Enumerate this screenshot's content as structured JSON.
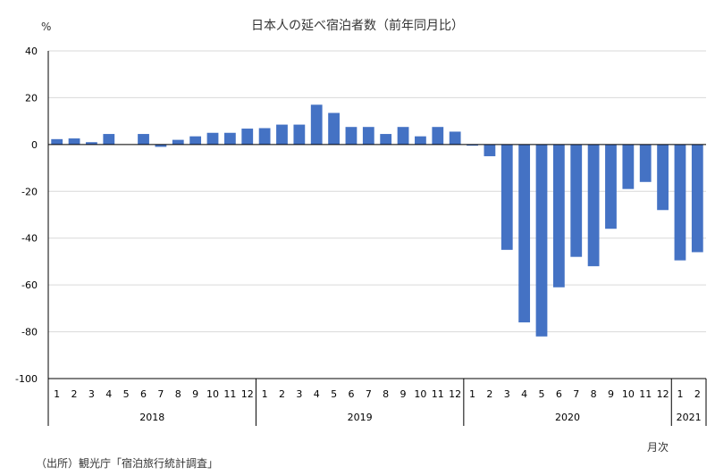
{
  "chart_data": {
    "type": "bar",
    "title": "日本人の延べ宿泊者数（前年同月比）",
    "ylabel": "%",
    "xlabel": "月次",
    "source": "（出所）観光庁「宿泊旅行統計調査」",
    "ylim": [
      -100,
      40
    ],
    "yticks": [
      40,
      20,
      0,
      -20,
      -40,
      -60,
      -80,
      -100
    ],
    "grid": true,
    "bar_color": "#4472c4",
    "groups": [
      {
        "year": "2018",
        "months": [
          "1",
          "2",
          "3",
          "4",
          "5",
          "6",
          "7",
          "8",
          "9",
          "10",
          "11",
          "12"
        ]
      },
      {
        "year": "2019",
        "months": [
          "1",
          "2",
          "3",
          "4",
          "5",
          "6",
          "7",
          "8",
          "9",
          "10",
          "11",
          "12"
        ]
      },
      {
        "year": "2020",
        "months": [
          "1",
          "2",
          "3",
          "4",
          "5",
          "6",
          "7",
          "8",
          "9",
          "10",
          "11",
          "12"
        ]
      },
      {
        "year": "2021",
        "months": [
          "1",
          "2"
        ]
      }
    ],
    "values": [
      2.3,
      2.6,
      1.0,
      4.5,
      0.0,
      4.5,
      -1.0,
      2.0,
      3.5,
      5.0,
      5.0,
      6.8,
      7.0,
      8.5,
      8.5,
      17.0,
      13.5,
      7.5,
      7.5,
      4.5,
      7.5,
      3.5,
      7.5,
      5.5,
      -0.5,
      -5.0,
      -45.0,
      -76.0,
      -82.0,
      -61.0,
      -48.0,
      -52.0,
      -36.0,
      -19.0,
      -16.0,
      -28.0,
      -49.5,
      -46.0
    ]
  }
}
